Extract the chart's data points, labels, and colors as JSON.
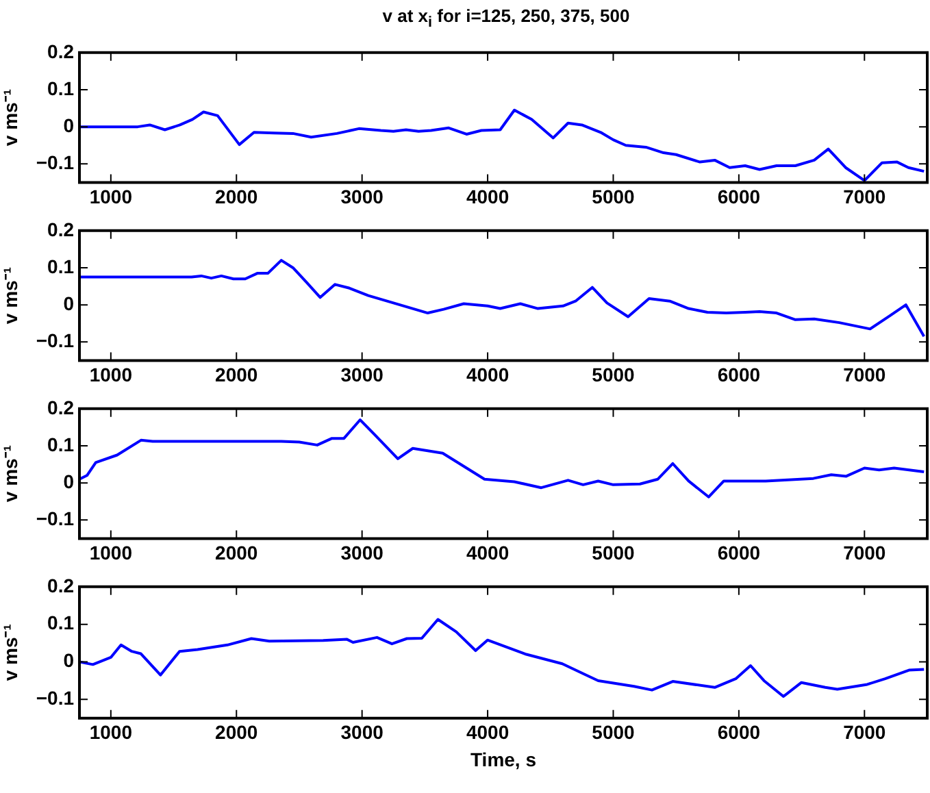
{
  "chart_data": [
    {
      "type": "line",
      "title": "v at x$_{i}$ for i=125, 250, 375, 500",
      "ylabel": "v ms⁻¹",
      "xlim": [
        750,
        7500
      ],
      "xticks": [
        1000,
        2000,
        3000,
        4000,
        5000,
        6000,
        7000
      ],
      "ylim": [
        -0.15,
        0.2
      ],
      "yticks": [
        -0.1,
        0,
        0.1,
        0.2
      ],
      "grid": false,
      "legend": false,
      "marker": "none",
      "line_style": "solid",
      "series": [
        {
          "color": "#0000ff",
          "x": [
            750,
            1214,
            1310,
            1430,
            1550,
            1650,
            1738,
            1850,
            2023,
            2140,
            2300,
            2450,
            2595,
            2800,
            2975,
            3150,
            3250,
            3350,
            3450,
            3550,
            3690,
            3832,
            3950,
            4100,
            4213,
            4350,
            4522,
            4640,
            4750,
            4900,
            5000,
            5100,
            5260,
            5400,
            5500,
            5690,
            5808,
            5927,
            6050,
            6165,
            6300,
            6450,
            6600,
            6712,
            6850,
            7000,
            7140,
            7260,
            7350,
            7474
          ],
          "values": [
            0,
            0,
            0.005,
            -0.008,
            0.005,
            0.02,
            0.04,
            0.03,
            -0.048,
            -0.015,
            -0.017,
            -0.018,
            -0.028,
            -0.018,
            -0.005,
            -0.01,
            -0.012,
            -0.008,
            -0.012,
            -0.01,
            -0.003,
            -0.02,
            -0.01,
            -0.008,
            0.045,
            0.02,
            -0.03,
            0.01,
            0.005,
            -0.015,
            -0.035,
            -0.05,
            -0.055,
            -0.07,
            -0.075,
            -0.095,
            -0.09,
            -0.11,
            -0.105,
            -0.115,
            -0.105,
            -0.105,
            -0.09,
            -0.06,
            -0.11,
            -0.145,
            -0.097,
            -0.095,
            -0.11,
            -0.12
          ]
        }
      ]
    },
    {
      "type": "line",
      "ylabel": "v ms⁻¹",
      "xlim": [
        750,
        7500
      ],
      "xticks": [
        1000,
        2000,
        3000,
        4000,
        5000,
        6000,
        7000
      ],
      "ylim": [
        -0.15,
        0.2
      ],
      "yticks": [
        -0.1,
        0,
        0.1,
        0.2
      ],
      "grid": false,
      "legend": false,
      "marker": "none",
      "line_style": "solid",
      "series": [
        {
          "color": "#0000ff",
          "x": [
            750,
            1643,
            1720,
            1800,
            1880,
            1976,
            2070,
            2166,
            2250,
            2357,
            2450,
            2560,
            2667,
            2785,
            2900,
            3050,
            3250,
            3523,
            3650,
            3810,
            4000,
            4100,
            4260,
            4400,
            4600,
            4700,
            4833,
            4950,
            5118,
            5285,
            5450,
            5600,
            5750,
            5900,
            6050,
            6165,
            6300,
            6450,
            6600,
            6800,
            7045,
            7200,
            7330,
            7474
          ],
          "values": [
            0.075,
            0.075,
            0.078,
            0.072,
            0.078,
            0.07,
            0.07,
            0.085,
            0.085,
            0.12,
            0.1,
            0.06,
            0.02,
            0.055,
            0.045,
            0.025,
            0.005,
            -0.022,
            -0.012,
            0.003,
            -0.003,
            -0.01,
            0.003,
            -0.01,
            -0.003,
            0.01,
            0.047,
            0.005,
            -0.032,
            0.017,
            0.01,
            -0.01,
            -0.02,
            -0.022,
            -0.02,
            -0.018,
            -0.022,
            -0.04,
            -0.038,
            -0.048,
            -0.065,
            -0.03,
            0,
            -0.085
          ]
        }
      ]
    },
    {
      "type": "line",
      "ylabel": "v ms⁻¹",
      "xlim": [
        750,
        7500
      ],
      "xticks": [
        1000,
        2000,
        3000,
        4000,
        5000,
        6000,
        7000
      ],
      "ylim": [
        -0.15,
        0.2
      ],
      "yticks": [
        -0.1,
        0,
        0.1,
        0.2
      ],
      "grid": false,
      "legend": false,
      "marker": "none",
      "line_style": "solid",
      "series": [
        {
          "color": "#0000ff",
          "x": [
            750,
            810,
            880,
            1050,
            1240,
            1333,
            2166,
            2357,
            2500,
            2643,
            2760,
            2856,
            2985,
            3100,
            3285,
            3404,
            3642,
            3975,
            4213,
            4427,
            4640,
            4760,
            4880,
            5000,
            5213,
            5355,
            5474,
            5600,
            5760,
            5880,
            6213,
            6593,
            6736,
            6855,
            7000,
            7117,
            7236,
            7474
          ],
          "values": [
            0.01,
            0.02,
            0.055,
            0.075,
            0.115,
            0.112,
            0.112,
            0.112,
            0.11,
            0.102,
            0.12,
            0.12,
            0.17,
            0.13,
            0.065,
            0.093,
            0.08,
            0.01,
            0.003,
            -0.013,
            0.007,
            -0.005,
            0.005,
            -0.005,
            -0.003,
            0.01,
            0.052,
            0.005,
            -0.038,
            0.005,
            0.005,
            0.012,
            0.022,
            0.018,
            0.04,
            0.035,
            0.04,
            0.03
          ]
        }
      ]
    },
    {
      "type": "line",
      "ylabel": "v ms⁻¹",
      "xlabel": "Time, s",
      "xlim": [
        750,
        7500
      ],
      "xticks": [
        1000,
        2000,
        3000,
        4000,
        5000,
        6000,
        7000
      ],
      "ylim": [
        -0.15,
        0.2
      ],
      "yticks": [
        -0.1,
        0,
        0.1,
        0.2
      ],
      "grid": false,
      "legend": false,
      "marker": "none",
      "line_style": "solid",
      "series": [
        {
          "color": "#0000ff",
          "x": [
            750,
            857,
            1000,
            1081,
            1167,
            1238,
            1395,
            1547,
            1690,
            1928,
            2119,
            2262,
            2690,
            2880,
            2928,
            3119,
            3238,
            3357,
            3476,
            3604,
            3750,
            3904,
            3999,
            4308,
            4594,
            4784,
            4880,
            5165,
            5308,
            5474,
            5808,
            5975,
            6093,
            6200,
            6355,
            6498,
            6688,
            6784,
            7022,
            7165,
            7355,
            7474
          ],
          "values": [
            0,
            -0.007,
            0.012,
            0.045,
            0.028,
            0.022,
            -0.035,
            0.028,
            0.033,
            0.045,
            0.062,
            0.055,
            0.057,
            0.06,
            0.052,
            0.065,
            0.048,
            0.062,
            0.063,
            0.113,
            0.08,
            0.03,
            0.058,
            0.02,
            -0.005,
            -0.035,
            -0.05,
            -0.065,
            -0.075,
            -0.052,
            -0.068,
            -0.045,
            -0.01,
            -0.05,
            -0.092,
            -0.055,
            -0.068,
            -0.073,
            -0.06,
            -0.045,
            -0.022,
            -0.02
          ]
        }
      ]
    }
  ]
}
